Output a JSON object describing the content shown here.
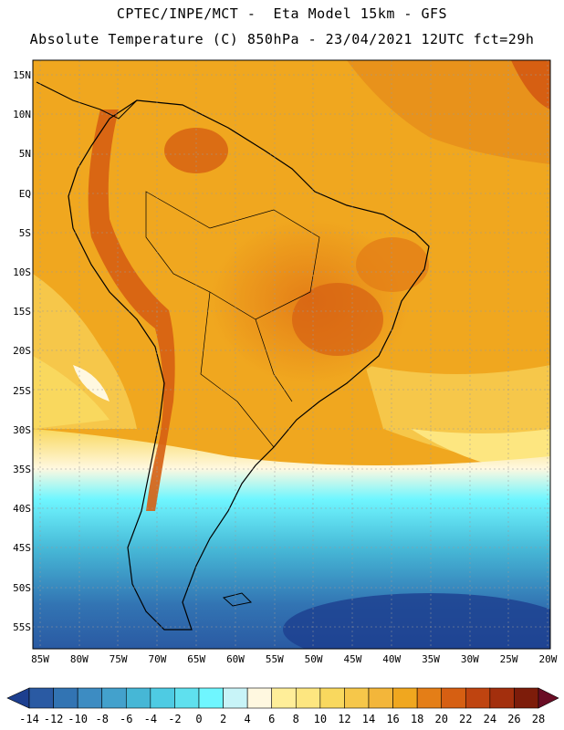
{
  "header": {
    "line1": "CPTEC/INPE/MCT -  Eta Model 15km - GFS",
    "line2": "Absolute Temperature (C) 850hPa - 23/04/2021 12UTC fct=29h"
  },
  "map": {
    "lat_labels": [
      "15N",
      "10N",
      "5N",
      "EQ",
      "5S",
      "10S",
      "15S",
      "20S",
      "25S",
      "30S",
      "35S",
      "40S",
      "45S",
      "50S",
      "55S"
    ],
    "lon_labels": [
      "85W",
      "80W",
      "75W",
      "70W",
      "65W",
      "60W",
      "55W",
      "50W",
      "45W",
      "40W",
      "35W",
      "30W",
      "25W",
      "20W"
    ],
    "regions": [
      "continent-outline",
      "warm-interior-brazil",
      "andes-warm-ridge",
      "cold-southern-ocean"
    ]
  },
  "colorbar": {
    "labels": [
      "-14",
      "-12",
      "-10",
      "-8",
      "-6",
      "-4",
      "-2",
      "0",
      "2",
      "4",
      "6",
      "8",
      "10",
      "12",
      "14",
      "16",
      "18",
      "20",
      "22",
      "24",
      "26",
      "28"
    ],
    "colors": [
      "#1d3f8f",
      "#2a5aa3",
      "#3274b3",
      "#3d8cc2",
      "#43a1cc",
      "#46b7d6",
      "#4ecbe3",
      "#5fe0ee",
      "#6ff6ff",
      "#c8f4f8",
      "#fff8e0",
      "#ffee99",
      "#fde680",
      "#f9d85e",
      "#f6c74a",
      "#f3b63a",
      "#f0a71f",
      "#e47e17",
      "#d65f12",
      "#bf4410",
      "#a32f0d",
      "#7d1c0a",
      "#6a0d25"
    ]
  }
}
